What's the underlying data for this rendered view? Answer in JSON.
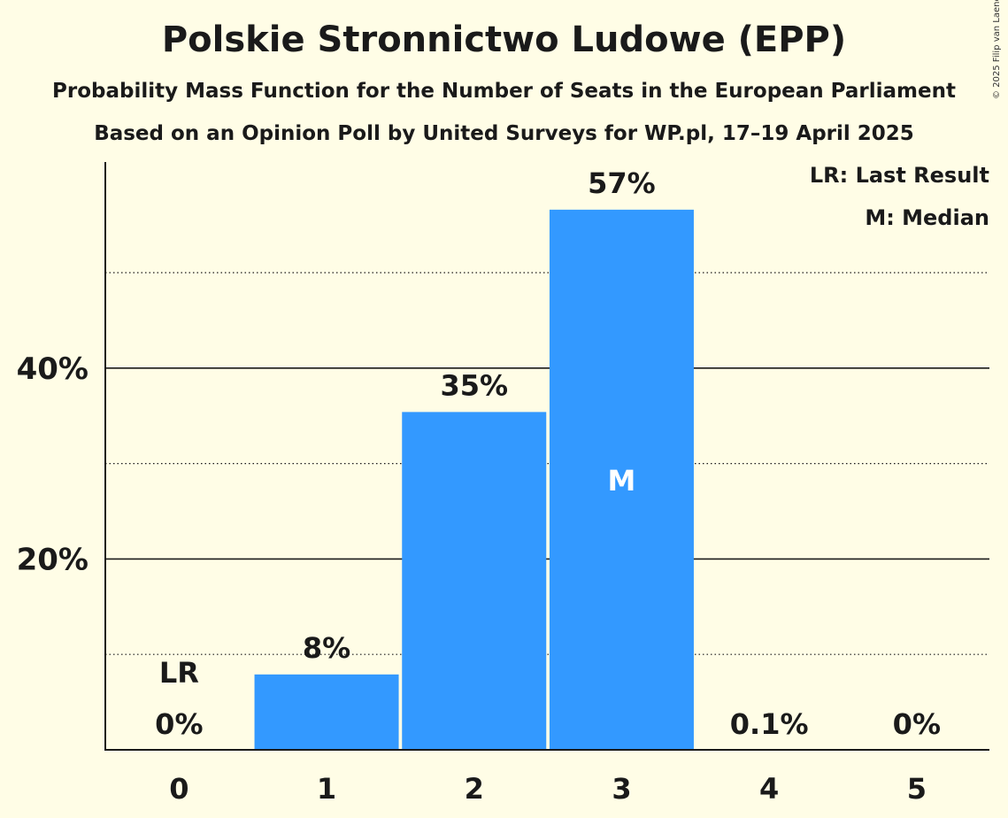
{
  "title": "Polskie Stronnictwo Ludowe (EPP)",
  "subtitle": "Probability Mass Function for the Number of Seats in the European Parliament",
  "source": "Based on an Opinion Poll by United Surveys for WP.pl, 17–19 April 2025",
  "copyright": "© 2025 Filip van Laenen",
  "legend": {
    "last_result": "LR: Last Result",
    "median": "M: Median"
  },
  "colors": {
    "bar": "#3399FF",
    "background": "#FFFDE6"
  },
  "chart_data": {
    "type": "bar",
    "categories": [
      "0",
      "1",
      "2",
      "3",
      "4",
      "5"
    ],
    "values": [
      0,
      7.9,
      35.4,
      56.6,
      0.1,
      0
    ],
    "data_labels": [
      "0%",
      "8%",
      "35%",
      "57%",
      "0.1%",
      "0%"
    ],
    "y_ticks": [
      {
        "value": 20,
        "label": "20%"
      },
      {
        "value": 40,
        "label": "40%"
      }
    ],
    "minor_gridlines": [
      10,
      30,
      50
    ],
    "ylim": [
      0,
      61.5
    ],
    "last_result_index": 0,
    "last_result_label": "LR",
    "median_index": 3,
    "median_label": "M",
    "xlabel": "",
    "ylabel": ""
  }
}
